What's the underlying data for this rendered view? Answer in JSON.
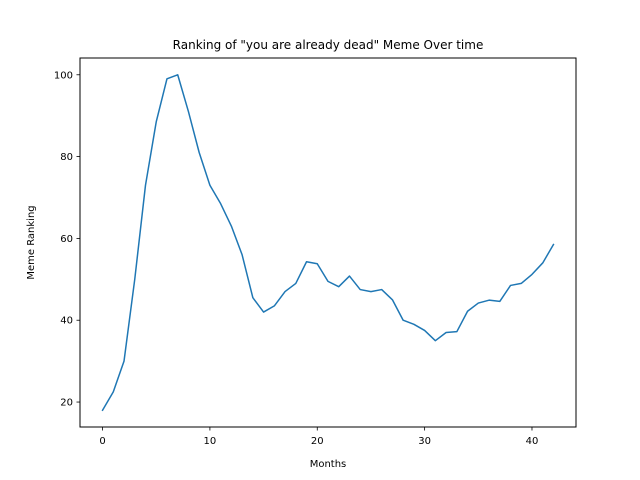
{
  "chart_data": {
    "type": "line",
    "title": "Ranking of \"you are already dead\" Meme Over time",
    "xlabel": "Months",
    "ylabel": "Meme Ranking",
    "xlim": [
      -2.1,
      44.1
    ],
    "ylim": [
      13.9,
      104.1
    ],
    "xticks": [
      0,
      10,
      20,
      30,
      40
    ],
    "yticks": [
      20,
      40,
      60,
      80,
      100
    ],
    "grid": false,
    "line_color": "#1f77b4",
    "series": [
      {
        "x": [
          0,
          1,
          2,
          3,
          4,
          5,
          6,
          7,
          8,
          9,
          10,
          11,
          12,
          13,
          14,
          15,
          16,
          17,
          18,
          19,
          20,
          21,
          22,
          23,
          24,
          25,
          26,
          27,
          28,
          29,
          30,
          31,
          32,
          33,
          34,
          35,
          36,
          37,
          38,
          39,
          40,
          41,
          42
        ],
        "values": [
          18,
          22.5,
          30,
          50,
          73,
          88.5,
          99,
          100,
          91,
          81,
          73,
          68.5,
          63,
          56,
          45.5,
          42,
          43.5,
          47,
          49,
          54.3,
          53.8,
          49.5,
          48.2,
          50.8,
          47.5,
          47,
          47.5,
          45,
          40,
          39,
          37.5,
          35,
          37,
          37.2,
          42.2,
          44.2,
          44.9,
          44.6,
          48.5,
          49,
          51.2,
          54,
          58.5
        ]
      }
    ]
  }
}
